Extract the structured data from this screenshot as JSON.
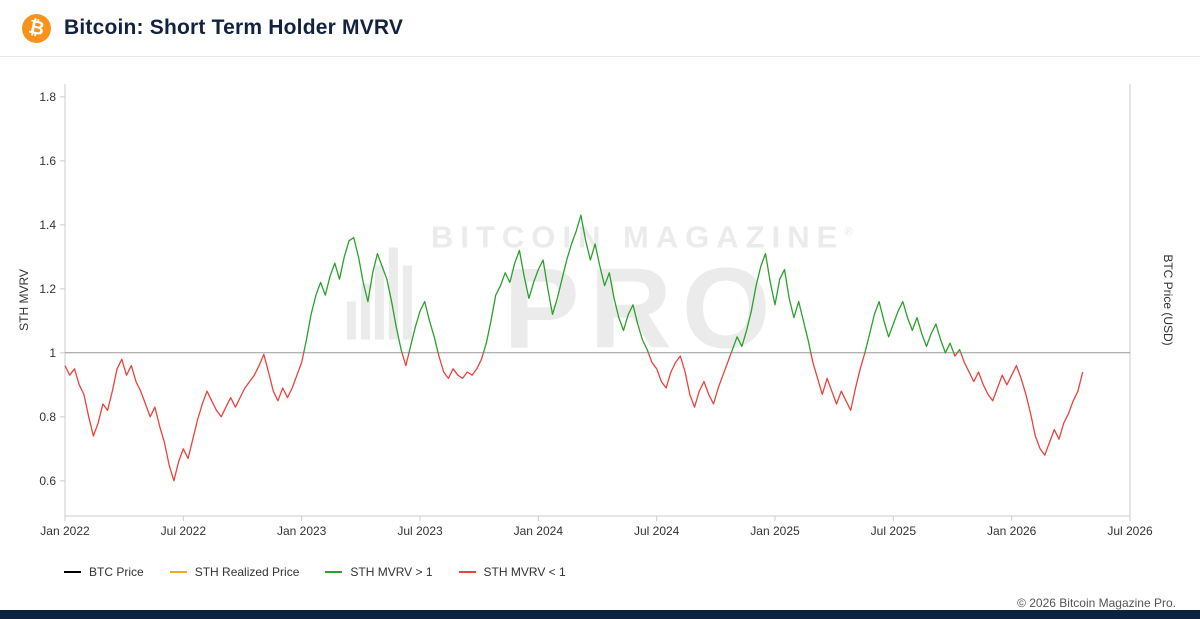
{
  "header": {
    "title": "Bitcoin: Short Term Holder MVRV",
    "logo_glyph": "₿"
  },
  "watermark": {
    "line1": "BITCOIN MAGAZINE",
    "reg": "®",
    "line2": "PRO"
  },
  "chart_data": {
    "type": "line",
    "title": "Bitcoin: Short Term Holder MVRV",
    "ylabel_left": "STH MVRV",
    "ylabel_right": "BTC Price (USD)",
    "x_ticks": [
      "Jan 2022",
      "Jul 2022",
      "Jan 2023",
      "Jul 2023",
      "Jan 2024",
      "Jul 2024",
      "Jan 2025",
      "Jul 2025",
      "Jan 2026",
      "Jul 2026"
    ],
    "x_tick_positions": [
      0,
      0.5,
      1,
      1.5,
      2,
      2.5,
      3,
      3.5,
      4,
      4.5
    ],
    "y_ticks": [
      0.6,
      0.8,
      1,
      1.2,
      1.4,
      1.6,
      1.8
    ],
    "x_range": [
      0,
      4.5
    ],
    "y_range": [
      0.49,
      1.84
    ],
    "threshold": 1,
    "grid": "no gridlines; single horizontal reference line at y=1",
    "legend_position": "bottom-left",
    "x_unit": "years since Jan 2022",
    "color_above": "#2ca02c",
    "color_below": "#e8433c",
    "points": [
      [
        0.0,
        0.96
      ],
      [
        0.02,
        0.93
      ],
      [
        0.04,
        0.95
      ],
      [
        0.06,
        0.9
      ],
      [
        0.08,
        0.87
      ],
      [
        0.1,
        0.8
      ],
      [
        0.12,
        0.74
      ],
      [
        0.14,
        0.78
      ],
      [
        0.16,
        0.84
      ],
      [
        0.18,
        0.82
      ],
      [
        0.2,
        0.88
      ],
      [
        0.22,
        0.95
      ],
      [
        0.24,
        0.98
      ],
      [
        0.26,
        0.93
      ],
      [
        0.28,
        0.96
      ],
      [
        0.3,
        0.91
      ],
      [
        0.32,
        0.88
      ],
      [
        0.34,
        0.84
      ],
      [
        0.36,
        0.8
      ],
      [
        0.38,
        0.83
      ],
      [
        0.4,
        0.77
      ],
      [
        0.42,
        0.72
      ],
      [
        0.44,
        0.65
      ],
      [
        0.46,
        0.6
      ],
      [
        0.48,
        0.66
      ],
      [
        0.5,
        0.7
      ],
      [
        0.52,
        0.67
      ],
      [
        0.54,
        0.73
      ],
      [
        0.56,
        0.79
      ],
      [
        0.58,
        0.84
      ],
      [
        0.6,
        0.88
      ],
      [
        0.62,
        0.85
      ],
      [
        0.64,
        0.82
      ],
      [
        0.66,
        0.8
      ],
      [
        0.68,
        0.83
      ],
      [
        0.7,
        0.86
      ],
      [
        0.72,
        0.83
      ],
      [
        0.74,
        0.86
      ],
      [
        0.76,
        0.89
      ],
      [
        0.78,
        0.91
      ],
      [
        0.8,
        0.93
      ],
      [
        0.82,
        0.96
      ],
      [
        0.84,
        0.995
      ],
      [
        0.86,
        0.94
      ],
      [
        0.88,
        0.88
      ],
      [
        0.9,
        0.85
      ],
      [
        0.92,
        0.89
      ],
      [
        0.94,
        0.86
      ],
      [
        0.96,
        0.89
      ],
      [
        0.98,
        0.93
      ],
      [
        1.0,
        0.97
      ],
      [
        1.02,
        1.04
      ],
      [
        1.04,
        1.12
      ],
      [
        1.06,
        1.18
      ],
      [
        1.08,
        1.22
      ],
      [
        1.1,
        1.18
      ],
      [
        1.12,
        1.24
      ],
      [
        1.14,
        1.28
      ],
      [
        1.16,
        1.23
      ],
      [
        1.18,
        1.3
      ],
      [
        1.2,
        1.35
      ],
      [
        1.22,
        1.36
      ],
      [
        1.24,
        1.3
      ],
      [
        1.26,
        1.22
      ],
      [
        1.28,
        1.16
      ],
      [
        1.3,
        1.25
      ],
      [
        1.32,
        1.31
      ],
      [
        1.34,
        1.27
      ],
      [
        1.36,
        1.23
      ],
      [
        1.38,
        1.16
      ],
      [
        1.4,
        1.08
      ],
      [
        1.42,
        1.01
      ],
      [
        1.44,
        0.96
      ],
      [
        1.46,
        1.02
      ],
      [
        1.48,
        1.08
      ],
      [
        1.5,
        1.13
      ],
      [
        1.52,
        1.16
      ],
      [
        1.54,
        1.1
      ],
      [
        1.56,
        1.05
      ],
      [
        1.58,
        0.99
      ],
      [
        1.6,
        0.94
      ],
      [
        1.62,
        0.92
      ],
      [
        1.64,
        0.95
      ],
      [
        1.66,
        0.93
      ],
      [
        1.68,
        0.92
      ],
      [
        1.7,
        0.94
      ],
      [
        1.72,
        0.93
      ],
      [
        1.74,
        0.95
      ],
      [
        1.76,
        0.98
      ],
      [
        1.78,
        1.03
      ],
      [
        1.8,
        1.1
      ],
      [
        1.82,
        1.18
      ],
      [
        1.84,
        1.21
      ],
      [
        1.86,
        1.25
      ],
      [
        1.88,
        1.22
      ],
      [
        1.9,
        1.28
      ],
      [
        1.92,
        1.32
      ],
      [
        1.94,
        1.24
      ],
      [
        1.96,
        1.17
      ],
      [
        1.98,
        1.22
      ],
      [
        2.0,
        1.26
      ],
      [
        2.02,
        1.29
      ],
      [
        2.04,
        1.2
      ],
      [
        2.06,
        1.12
      ],
      [
        2.08,
        1.17
      ],
      [
        2.1,
        1.23
      ],
      [
        2.12,
        1.29
      ],
      [
        2.14,
        1.34
      ],
      [
        2.16,
        1.38
      ],
      [
        2.18,
        1.43
      ],
      [
        2.2,
        1.35
      ],
      [
        2.22,
        1.29
      ],
      [
        2.24,
        1.34
      ],
      [
        2.26,
        1.27
      ],
      [
        2.28,
        1.21
      ],
      [
        2.3,
        1.25
      ],
      [
        2.32,
        1.17
      ],
      [
        2.34,
        1.11
      ],
      [
        2.36,
        1.07
      ],
      [
        2.38,
        1.12
      ],
      [
        2.4,
        1.15
      ],
      [
        2.42,
        1.09
      ],
      [
        2.44,
        1.04
      ],
      [
        2.46,
        1.01
      ],
      [
        2.48,
        0.97
      ],
      [
        2.5,
        0.95
      ],
      [
        2.52,
        0.91
      ],
      [
        2.54,
        0.89
      ],
      [
        2.56,
        0.94
      ],
      [
        2.58,
        0.97
      ],
      [
        2.6,
        0.99
      ],
      [
        2.62,
        0.94
      ],
      [
        2.64,
        0.87
      ],
      [
        2.66,
        0.83
      ],
      [
        2.68,
        0.88
      ],
      [
        2.7,
        0.91
      ],
      [
        2.72,
        0.87
      ],
      [
        2.74,
        0.84
      ],
      [
        2.76,
        0.89
      ],
      [
        2.78,
        0.93
      ],
      [
        2.8,
        0.97
      ],
      [
        2.82,
        1.01
      ],
      [
        2.84,
        1.05
      ],
      [
        2.86,
        1.02
      ],
      [
        2.88,
        1.07
      ],
      [
        2.9,
        1.13
      ],
      [
        2.92,
        1.21
      ],
      [
        2.94,
        1.27
      ],
      [
        2.96,
        1.31
      ],
      [
        2.98,
        1.22
      ],
      [
        3.0,
        1.15
      ],
      [
        3.02,
        1.23
      ],
      [
        3.04,
        1.26
      ],
      [
        3.06,
        1.17
      ],
      [
        3.08,
        1.11
      ],
      [
        3.1,
        1.16
      ],
      [
        3.12,
        1.1
      ],
      [
        3.14,
        1.04
      ],
      [
        3.16,
        0.97
      ],
      [
        3.18,
        0.92
      ],
      [
        3.2,
        0.87
      ],
      [
        3.22,
        0.92
      ],
      [
        3.24,
        0.88
      ],
      [
        3.26,
        0.84
      ],
      [
        3.28,
        0.88
      ],
      [
        3.3,
        0.85
      ],
      [
        3.32,
        0.82
      ],
      [
        3.34,
        0.89
      ],
      [
        3.36,
        0.95
      ],
      [
        3.38,
        1.0
      ],
      [
        3.4,
        1.06
      ],
      [
        3.42,
        1.12
      ],
      [
        3.44,
        1.16
      ],
      [
        3.46,
        1.1
      ],
      [
        3.48,
        1.05
      ],
      [
        3.5,
        1.09
      ],
      [
        3.52,
        1.13
      ],
      [
        3.54,
        1.16
      ],
      [
        3.56,
        1.11
      ],
      [
        3.58,
        1.07
      ],
      [
        3.6,
        1.11
      ],
      [
        3.62,
        1.06
      ],
      [
        3.64,
        1.02
      ],
      [
        3.66,
        1.06
      ],
      [
        3.68,
        1.09
      ],
      [
        3.7,
        1.04
      ],
      [
        3.72,
        1.0
      ],
      [
        3.74,
        1.03
      ],
      [
        3.76,
        0.99
      ],
      [
        3.78,
        1.01
      ],
      [
        3.8,
        0.97
      ],
      [
        3.82,
        0.94
      ],
      [
        3.84,
        0.91
      ],
      [
        3.86,
        0.94
      ],
      [
        3.88,
        0.9
      ],
      [
        3.9,
        0.87
      ],
      [
        3.92,
        0.85
      ],
      [
        3.94,
        0.89
      ],
      [
        3.96,
        0.93
      ],
      [
        3.98,
        0.9
      ],
      [
        4.0,
        0.93
      ],
      [
        4.02,
        0.96
      ],
      [
        4.04,
        0.92
      ],
      [
        4.06,
        0.87
      ],
      [
        4.08,
        0.81
      ],
      [
        4.1,
        0.74
      ],
      [
        4.12,
        0.7
      ],
      [
        4.14,
        0.68
      ],
      [
        4.16,
        0.72
      ],
      [
        4.18,
        0.76
      ],
      [
        4.2,
        0.73
      ],
      [
        4.22,
        0.78
      ],
      [
        4.24,
        0.81
      ],
      [
        4.26,
        0.85
      ],
      [
        4.28,
        0.88
      ],
      [
        4.3,
        0.94
      ]
    ]
  },
  "legend": {
    "items": [
      {
        "label": "BTC Price",
        "color": "#000000"
      },
      {
        "label": "STH Realized Price",
        "color": "#f5a623"
      },
      {
        "label": "STH MVRV > 1",
        "color": "#2ca02c"
      },
      {
        "label": "STH MVRV < 1",
        "color": "#e8433c"
      }
    ]
  },
  "footer": {
    "copyright": "© 2026 Bitcoin Magazine Pro."
  },
  "colors": {
    "accent_orange": "#f7931a",
    "title_navy": "#13233f",
    "threshold_line": "#999999",
    "axis": "#cccccc",
    "tick_text": "#333333",
    "watermark": "#ebebeb",
    "bottom_bar_navy": "#0c2340"
  }
}
